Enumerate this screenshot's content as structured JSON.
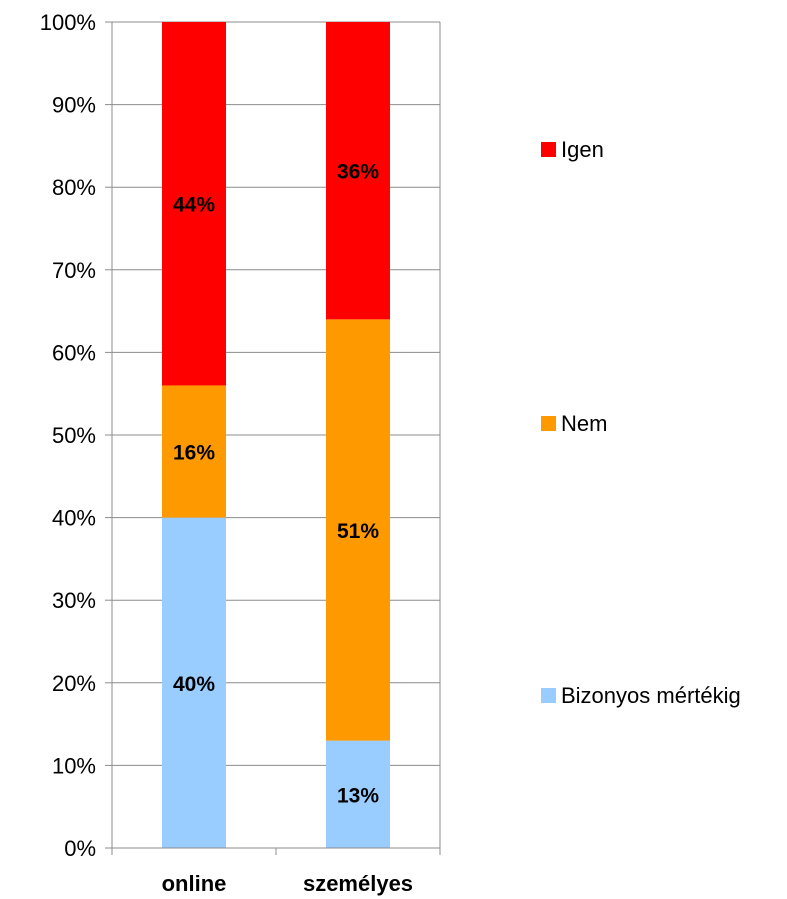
{
  "chart_data": {
    "type": "bar",
    "stacked": true,
    "normalized": true,
    "categories": [
      "online",
      "személyes"
    ],
    "series": [
      {
        "name": "Bizonyos mértékig",
        "values": [
          40,
          13
        ],
        "labels": [
          "40%",
          "13%"
        ],
        "color": "#99ccff"
      },
      {
        "name": "Nem",
        "values": [
          16,
          51
        ],
        "labels": [
          "16%",
          "51%"
        ],
        "color": "#ff9900"
      },
      {
        "name": "Igen",
        "values": [
          44,
          36
        ],
        "labels": [
          "44%",
          "36%"
        ],
        "color": "#ff0000"
      }
    ],
    "ylim": [
      0,
      100
    ],
    "yticks": [
      0,
      10,
      20,
      30,
      40,
      50,
      60,
      70,
      80,
      90,
      100
    ],
    "ytick_labels": [
      "0%",
      "10%",
      "20%",
      "30%",
      "40%",
      "50%",
      "60%",
      "70%",
      "80%",
      "90%",
      "100%"
    ],
    "grid": true,
    "legend_position": "right",
    "legend_order": [
      "Igen",
      "Nem",
      "Bizonyos mértékig"
    ],
    "title": "",
    "xlabel": "",
    "ylabel": ""
  }
}
